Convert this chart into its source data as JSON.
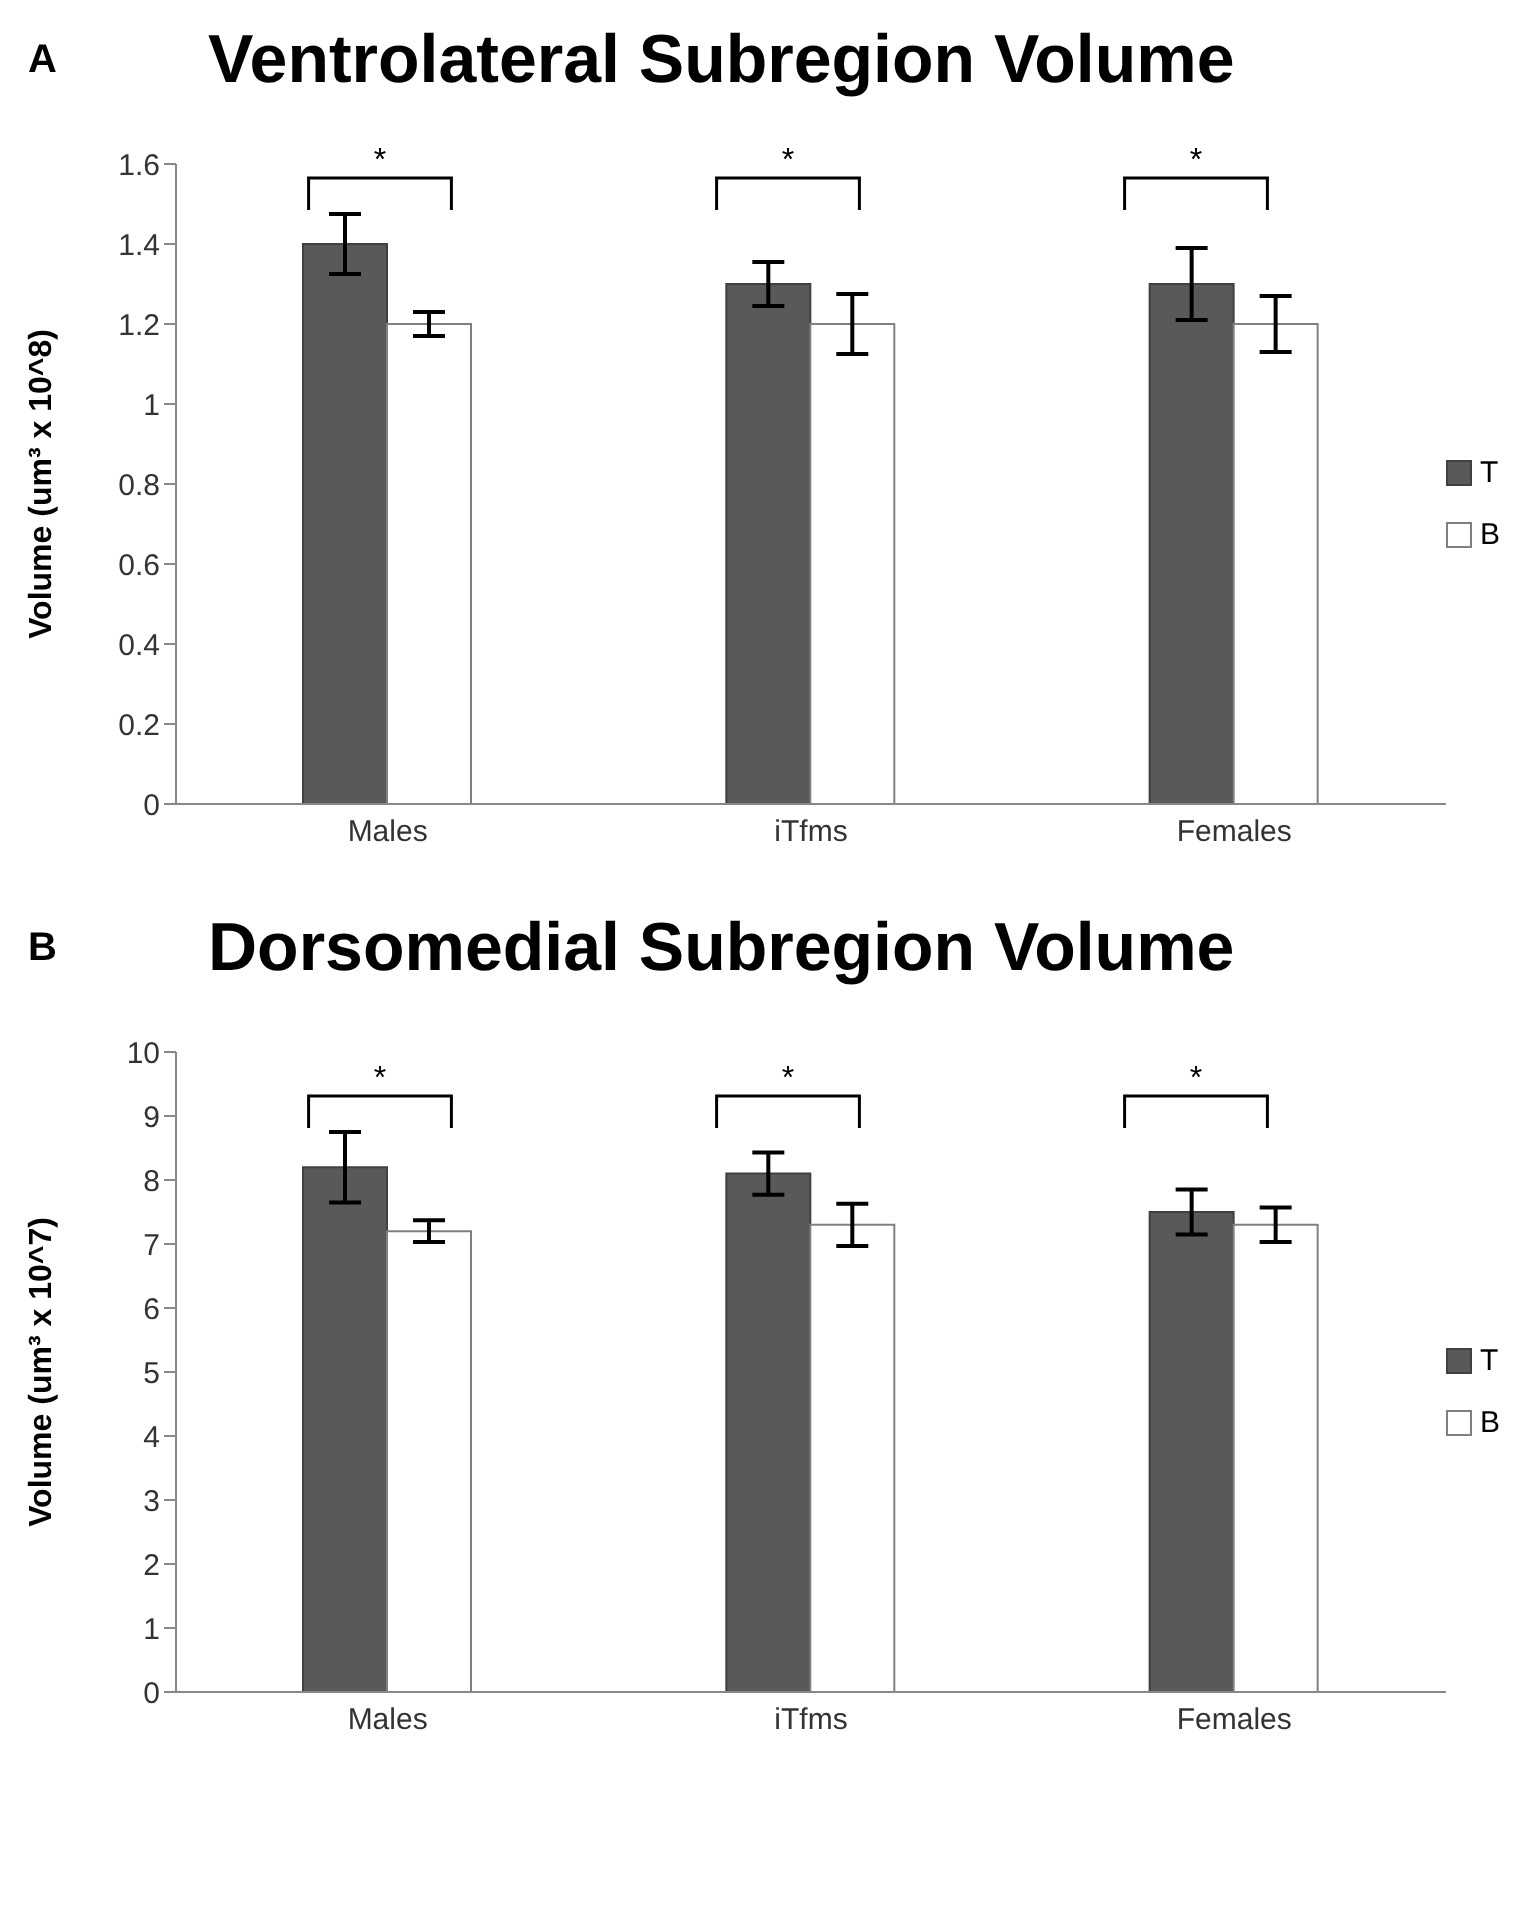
{
  "chart_data": [
    {
      "type": "bar",
      "title": "Ventrolateral Subregion Volume",
      "ylabel": "Volume  (um³ x 10^8)",
      "categories": [
        "Males",
        "iTfms",
        "Females"
      ],
      "series": [
        {
          "name": "T",
          "color": "#595959",
          "values": [
            1.4,
            1.3,
            1.3
          ],
          "errors": [
            0.075,
            0.055,
            0.09
          ]
        },
        {
          "name": "B",
          "color": "#ffffff",
          "values": [
            1.2,
            1.2,
            1.2
          ],
          "errors": [
            0.03,
            0.075,
            0.07
          ]
        }
      ],
      "ylim": [
        0,
        1.6
      ],
      "yticks": [
        0,
        0.2,
        0.4,
        0.6,
        0.8,
        {
          "value": 1,
          "label": "1"
        },
        1.2,
        1.4,
        1.6
      ],
      "grid": false,
      "legend": "right",
      "annotations": [
        "A",
        "*",
        "*",
        "*"
      ]
    },
    {
      "type": "bar",
      "title": "Dorsomedial Subregion Volume",
      "ylabel": "Volume  (um³ x 10^7)",
      "categories": [
        "Males",
        "iTfms",
        "Females"
      ],
      "series": [
        {
          "name": "T",
          "color": "#595959",
          "values": [
            8.2,
            8.1,
            7.5
          ],
          "errors": [
            0.55,
            0.33,
            0.35
          ]
        },
        {
          "name": "B",
          "color": "#ffffff",
          "values": [
            7.2,
            7.3,
            7.3
          ],
          "errors": [
            0.17,
            0.33,
            0.27
          ]
        }
      ],
      "ylim": [
        0,
        10
      ],
      "yticks": [
        0,
        1,
        2,
        3,
        4,
        5,
        6,
        7,
        8,
        9,
        10
      ],
      "grid": false,
      "legend": "right",
      "annotations": [
        "B",
        "*",
        "*",
        "*"
      ]
    }
  ]
}
